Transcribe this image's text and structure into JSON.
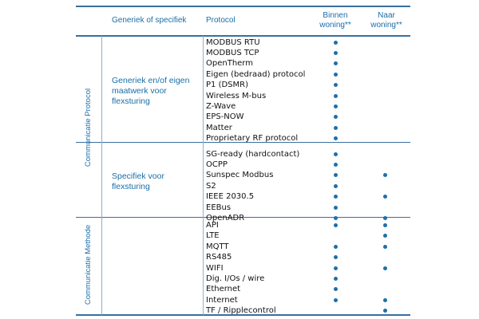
{
  "header": {
    "col_specific": "Generiek of specifiek",
    "col_protocol": "Protocol",
    "col_inside": "Binnen woning**",
    "col_outside": "Naar woning**"
  },
  "sections": [
    {
      "side_label": "Communicatie Protocol",
      "groups": [
        {
          "label": "Generiek en/of eigen maatwerk voor flexsturing",
          "rows": [
            {
              "name": "MODBUS RTU",
              "inside": true,
              "outside": false
            },
            {
              "name": "MODBUS TCP",
              "inside": true,
              "outside": false
            },
            {
              "name": "OpenTherm",
              "inside": true,
              "outside": false
            },
            {
              "name": "Eigen (bedraad) protocol",
              "inside": true,
              "outside": false
            },
            {
              "name": "P1 (DSMR)",
              "inside": true,
              "outside": false
            },
            {
              "name": "Wireless M-bus",
              "inside": true,
              "outside": false
            },
            {
              "name": "Z-Wave",
              "inside": true,
              "outside": false
            },
            {
              "name": "EPS-NOW",
              "inside": true,
              "outside": false
            },
            {
              "name": "Matter",
              "inside": true,
              "outside": false
            },
            {
              "name": "Proprietary RF protocol",
              "inside": true,
              "outside": false
            }
          ]
        },
        {
          "label": "Specifiek voor flexsturing",
          "rows": [
            {
              "name": "SG-ready (hardcontact)",
              "inside": true,
              "outside": false
            },
            {
              "name": "OCPP",
              "inside": true,
              "outside": false
            },
            {
              "name": "Sunspec Modbus",
              "inside": true,
              "outside": true
            },
            {
              "name": "S2",
              "inside": true,
              "outside": false
            },
            {
              "name": "IEEE 2030.5",
              "inside": true,
              "outside": true
            },
            {
              "name": "EEBus",
              "inside": true,
              "outside": false
            },
            {
              "name": "OpenADR",
              "inside": true,
              "outside": true
            }
          ]
        }
      ]
    },
    {
      "side_label": "Communicatie Methode",
      "groups": [
        {
          "label": "",
          "rows": [
            {
              "name": "API",
              "inside": true,
              "outside": true
            },
            {
              "name": "LTE",
              "inside": false,
              "outside": true
            },
            {
              "name": "MQTT",
              "inside": true,
              "outside": true
            },
            {
              "name": "RS485",
              "inside": true,
              "outside": false
            },
            {
              "name": "WIFI",
              "inside": true,
              "outside": true
            },
            {
              "name": "Dig. I/Os / wire",
              "inside": true,
              "outside": false
            },
            {
              "name": "Ethernet",
              "inside": true,
              "outside": false
            },
            {
              "name": "Internet",
              "inside": true,
              "outside": true
            },
            {
              "name": "TF / Ripplecontrol",
              "inside": false,
              "outside": true
            }
          ]
        }
      ]
    }
  ]
}
